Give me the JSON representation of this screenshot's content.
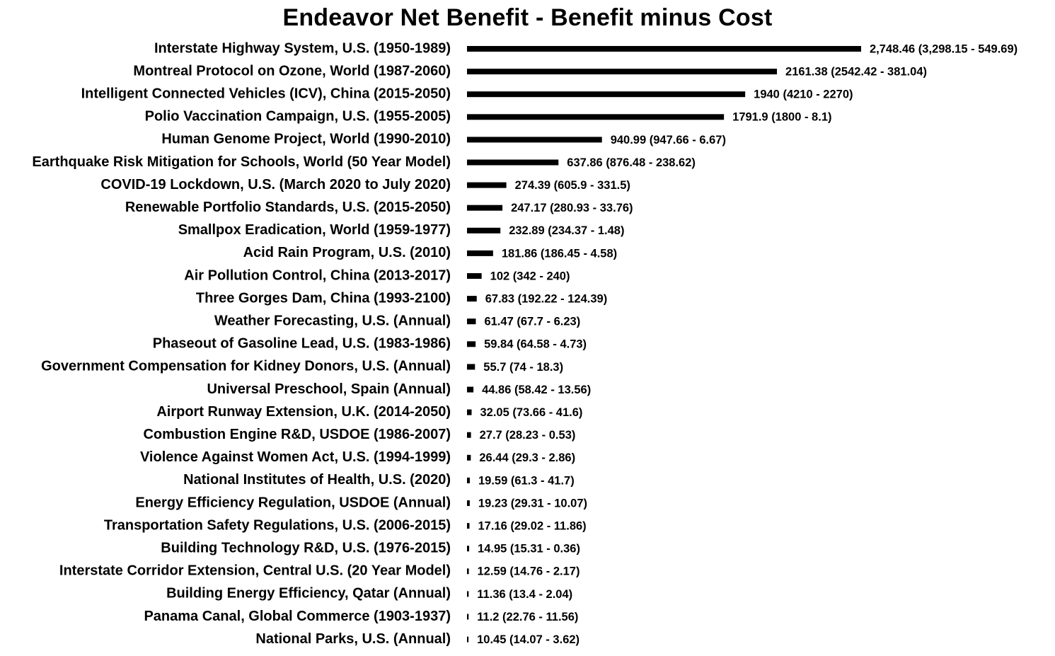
{
  "chart_data": {
    "type": "bar",
    "orientation": "horizontal",
    "title": "Endeavor Net Benefit - Benefit minus Cost",
    "xlabel": "",
    "ylabel": "",
    "grid": false,
    "legend": "none",
    "bar_color": "#000000",
    "categories": [
      "Interstate Highway System, U.S. (1950-1989)",
      "Montreal Protocol on Ozone, World (1987-2060)",
      "Intelligent Connected Vehicles (ICV), China (2015-2050)",
      "Polio Vaccination Campaign, U.S. (1955-2005)",
      "Human Genome Project, World (1990-2010)",
      "Earthquake Risk Mitigation for Schools, World (50 Year Model)",
      "COVID-19 Lockdown, U.S. (March 2020 to July 2020)",
      "Renewable Portfolio Standards, U.S. (2015-2050)",
      "Smallpox Eradication, World (1959-1977)",
      "Acid Rain Program, U.S. (2010)",
      "Air Pollution Control, China (2013-2017)",
      "Three Gorges Dam, China (1993-2100)",
      "Weather Forecasting, U.S. (Annual)",
      "Phaseout of Gasoline Lead, U.S. (1983-1986)",
      "Government Compensation for Kidney Donors, U.S. (Annual)",
      "Universal Preschool, Spain (Annual)",
      "Airport Runway Extension, U.K. (2014-2050)",
      "Combustion Engine R&D, USDOE (1986-2007)",
      "Violence Against Women Act, U.S. (1994-1999)",
      "National Institutes of Health, U.S. (2020)",
      "Energy Efficiency Regulation, USDOE (Annual)",
      "Transportation Safety Regulations, U.S. (2006-2015)",
      "Building Technology R&D, U.S. (1976-2015)",
      "Interstate Corridor Extension, Central U.S. (20 Year Model)",
      "Building Energy Efficiency, Qatar (Annual)",
      "Panama Canal, Global Commerce (1903-1937)",
      "National Parks, U.S. (Annual)"
    ],
    "values": [
      2748.46,
      2161.38,
      1940,
      1791.9,
      940.99,
      637.86,
      274.39,
      247.17,
      232.89,
      181.86,
      102,
      67.83,
      61.47,
      59.84,
      55.7,
      44.86,
      32.05,
      27.7,
      26.44,
      19.59,
      19.23,
      17.16,
      14.95,
      12.59,
      11.36,
      11.2,
      10.45
    ],
    "data_labels": [
      "2,748.46 (3,298.15 - 549.69)",
      "2161.38 (2542.42 - 381.04)",
      "1940 (4210 - 2270)",
      "1791.9 (1800 - 8.1)",
      "940.99 (947.66 - 6.67)",
      "637.86 (876.48 - 238.62)",
      "274.39 (605.9 - 331.5)",
      "247.17 (280.93 - 33.76)",
      "232.89 (234.37 - 1.48)",
      "181.86 (186.45 - 4.58)",
      "102 (342 - 240)",
      "67.83 (192.22 - 124.39)",
      "61.47 (67.7 - 6.23)",
      "59.84 (64.58 - 4.73)",
      "55.7 (74 - 18.3)",
      "44.86 (58.42 - 13.56)",
      "32.05 (73.66 - 41.6)",
      "27.7 (28.23 - 0.53)",
      "26.44 (29.3 - 2.86)",
      "19.59 (61.3 - 41.7)",
      "19.23 (29.31 - 10.07)",
      "17.16 (29.02 - 11.86)",
      "14.95 (15.31 - 0.36)",
      "12.59 (14.76 - 2.17)",
      "11.36 (13.4 - 2.04)",
      "11.2 (22.76 - 11.56)",
      "10.45 (14.07 - 3.62)"
    ]
  }
}
